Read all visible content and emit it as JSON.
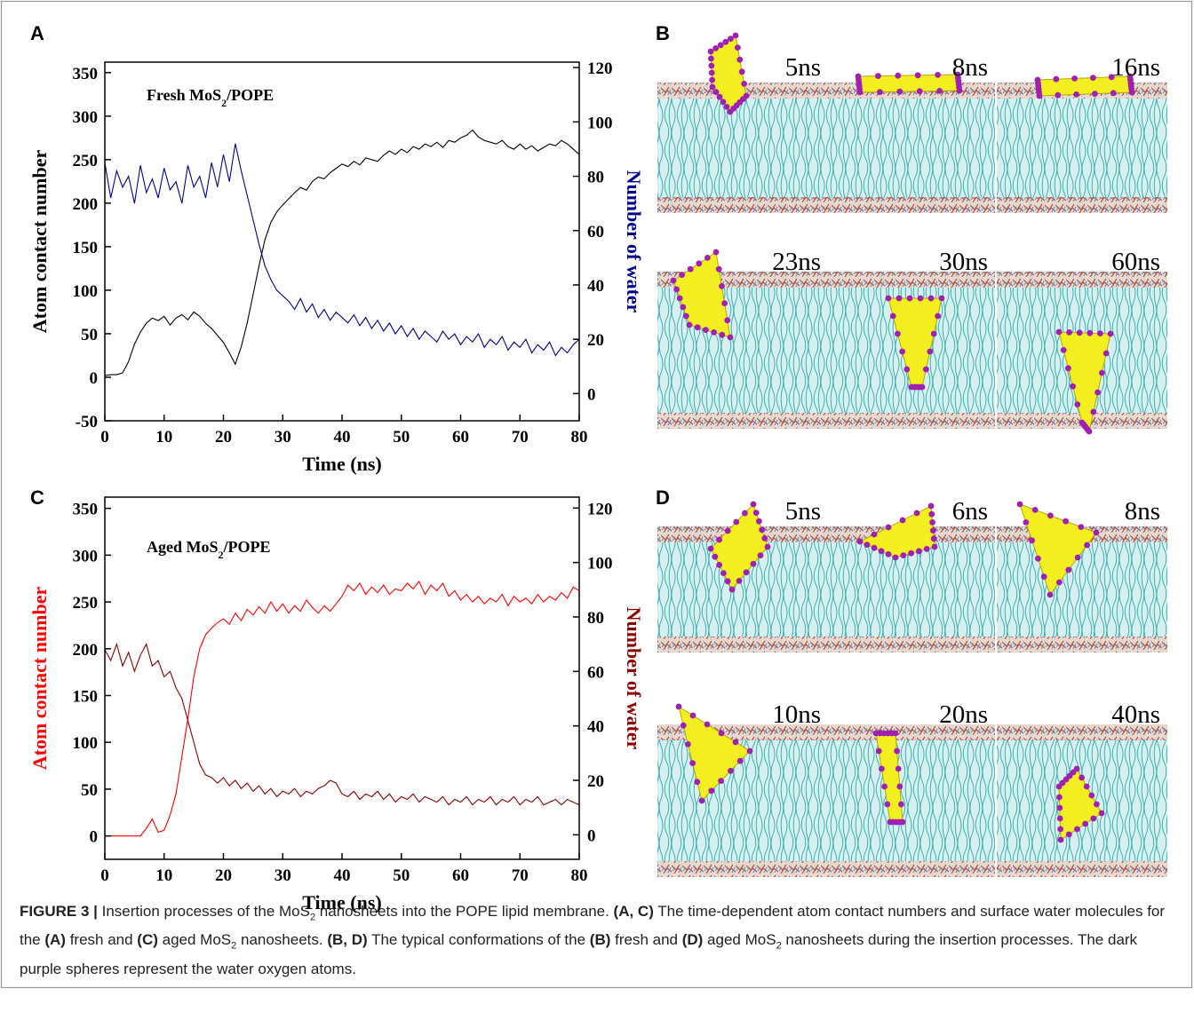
{
  "chart_data": [
    {
      "type": "line",
      "panel_label": "A",
      "annotation": [
        "Fresh MoS",
        "2",
        "/POPE"
      ],
      "xlabel": "Time (ns)",
      "ylabel": "Atom contact number",
      "y2label": "Number of water",
      "xlim": [
        0,
        80
      ],
      "xticks": [
        0,
        10,
        20,
        30,
        40,
        50,
        60,
        70,
        80
      ],
      "ylim": [
        -50,
        362
      ],
      "yticks": [
        -50,
        0,
        50,
        100,
        150,
        200,
        250,
        300,
        350
      ],
      "y2lim": [
        -10,
        122
      ],
      "y2ticks": [
        0,
        20,
        40,
        60,
        80,
        100,
        120
      ],
      "ylabel_color": "#000000",
      "y2label_color": "#00008b",
      "x": [
        0,
        1,
        2,
        3,
        4,
        5,
        6,
        7,
        8,
        9,
        10,
        11,
        12,
        13,
        14,
        15,
        16,
        17,
        18,
        19,
        20,
        21,
        22,
        23,
        24,
        25,
        26,
        27,
        28,
        29,
        30,
        31,
        32,
        33,
        34,
        35,
        36,
        37,
        38,
        39,
        40,
        41,
        42,
        43,
        44,
        45,
        46,
        47,
        48,
        49,
        50,
        51,
        52,
        53,
        54,
        55,
        56,
        57,
        58,
        59,
        60,
        61,
        62,
        63,
        64,
        65,
        66,
        67,
        68,
        69,
        70,
        71,
        72,
        73,
        74,
        75,
        76,
        77,
        78,
        79,
        80
      ],
      "series": [
        {
          "color": "#000000",
          "axis": "y",
          "values": [
            2,
            3,
            3,
            5,
            18,
            38,
            52,
            62,
            68,
            65,
            70,
            60,
            68,
            72,
            66,
            75,
            70,
            62,
            56,
            48,
            40,
            28,
            15,
            35,
            62,
            95,
            128,
            158,
            178,
            190,
            198,
            205,
            212,
            218,
            215,
            225,
            230,
            228,
            235,
            240,
            245,
            242,
            248,
            244,
            252,
            250,
            248,
            255,
            260,
            256,
            262,
            258,
            265,
            262,
            268,
            265,
            270,
            264,
            272,
            270,
            275,
            278,
            284,
            276,
            272,
            270,
            268,
            272,
            265,
            262,
            268,
            262,
            266,
            260,
            264,
            268,
            266,
            272,
            268,
            262,
            256
          ]
        },
        {
          "color": "#00008b",
          "axis": "y2",
          "values": [
            85,
            72,
            82,
            76,
            80,
            70,
            84,
            74,
            79,
            72,
            83,
            75,
            78,
            70,
            84,
            76,
            80,
            72,
            85,
            76,
            88,
            78,
            92,
            82,
            73,
            64,
            55,
            47,
            42,
            38,
            36,
            34,
            31,
            35,
            30,
            33,
            28,
            31,
            27,
            30,
            28,
            26,
            29,
            25,
            28,
            24,
            27,
            23,
            26,
            22,
            25,
            21,
            24,
            20,
            23,
            21,
            19,
            23,
            20,
            22,
            18,
            21,
            19,
            22,
            17,
            20,
            18,
            21,
            16,
            19,
            17,
            20,
            15,
            18,
            16,
            19,
            14,
            17,
            15,
            18,
            20
          ]
        }
      ]
    },
    {
      "type": "line",
      "panel_label": "C",
      "annotation": [
        "Aged MoS",
        "2",
        "/POPE"
      ],
      "xlabel": "Time (ns)",
      "ylabel": "Atom contact number",
      "y2label": "Number of water",
      "xlim": [
        0,
        80
      ],
      "xticks": [
        0,
        10,
        20,
        30,
        40,
        50,
        60,
        70,
        80
      ],
      "ylim": [
        -25,
        362
      ],
      "yticks": [
        0,
        50,
        100,
        150,
        200,
        250,
        300,
        350
      ],
      "y2lim": [
        -9,
        124
      ],
      "y2ticks": [
        0,
        20,
        40,
        60,
        80,
        100,
        120
      ],
      "ylabel_color": "#ff0000",
      "y2label_color": "#8b0000",
      "x": [
        0,
        1,
        2,
        3,
        4,
        5,
        6,
        7,
        8,
        9,
        10,
        11,
        12,
        13,
        14,
        15,
        16,
        17,
        18,
        19,
        20,
        21,
        22,
        23,
        24,
        25,
        26,
        27,
        28,
        29,
        30,
        31,
        32,
        33,
        34,
        35,
        36,
        37,
        38,
        39,
        40,
        41,
        42,
        43,
        44,
        45,
        46,
        47,
        48,
        49,
        50,
        51,
        52,
        53,
        54,
        55,
        56,
        57,
        58,
        59,
        60,
        61,
        62,
        63,
        64,
        65,
        66,
        67,
        68,
        69,
        70,
        71,
        72,
        73,
        74,
        75,
        76,
        77,
        78,
        79,
        80
      ],
      "series": [
        {
          "color": "#ff0000",
          "axis": "y",
          "values": [
            0,
            0,
            0,
            0,
            0,
            0,
            0,
            8,
            18,
            4,
            6,
            22,
            45,
            85,
            125,
            170,
            200,
            215,
            222,
            228,
            232,
            226,
            238,
            230,
            242,
            236,
            245,
            238,
            250,
            240,
            248,
            238,
            246,
            240,
            252,
            244,
            238,
            246,
            240,
            248,
            256,
            268,
            262,
            270,
            258,
            266,
            260,
            268,
            258,
            264,
            262,
            270,
            264,
            272,
            258,
            268,
            262,
            270,
            256,
            262,
            252,
            258,
            250,
            256,
            248,
            254,
            250,
            258,
            246,
            256,
            250,
            254,
            248,
            258,
            250,
            256,
            252,
            260,
            254,
            266,
            262
          ]
        },
        {
          "color": "#8b0000",
          "axis": "y2",
          "values": [
            68,
            64,
            70,
            62,
            67,
            60,
            66,
            70,
            62,
            64,
            58,
            60,
            54,
            50,
            42,
            34,
            26,
            22,
            21,
            19,
            21,
            18,
            20,
            17,
            19,
            16,
            18,
            15,
            17,
            14,
            16,
            15,
            17,
            14,
            16,
            15,
            17,
            18,
            20,
            19,
            15,
            14,
            16,
            13,
            15,
            14,
            16,
            13,
            15,
            12,
            14,
            13,
            15,
            12,
            14,
            13,
            12,
            14,
            11,
            13,
            12,
            14,
            11,
            13,
            12,
            14,
            11,
            13,
            12,
            14,
            11,
            13,
            12,
            14,
            11,
            12,
            13,
            11,
            13,
            12,
            11
          ]
        }
      ]
    }
  ],
  "snapshots": [
    {
      "panel_label": "B",
      "times": [
        "5ns",
        "8ns",
        "16ns",
        "23ns",
        "30ns",
        "60ns"
      ]
    },
    {
      "panel_label": "D",
      "times": [
        "5ns",
        "6ns",
        "8ns",
        "10ns",
        "20ns",
        "40ns"
      ]
    }
  ],
  "caption": [
    "FIGURE 3 |",
    " Insertion processes of the MoS",
    "2",
    " nanosheets into the POPE lipid membrane. ",
    "(A, C)",
    " The time-dependent atom contact numbers and surface water molecules for the ",
    "(A)",
    " fresh and ",
    "(C)",
    " aged MoS",
    "2",
    " nanosheets. ",
    "(B, D)",
    " The typical conformations of the ",
    "(B)",
    " fresh and ",
    "(D)",
    " aged MoS",
    "2",
    " nanosheets during the insertion processes. The dark purple spheres represent the water oxygen atoms."
  ]
}
